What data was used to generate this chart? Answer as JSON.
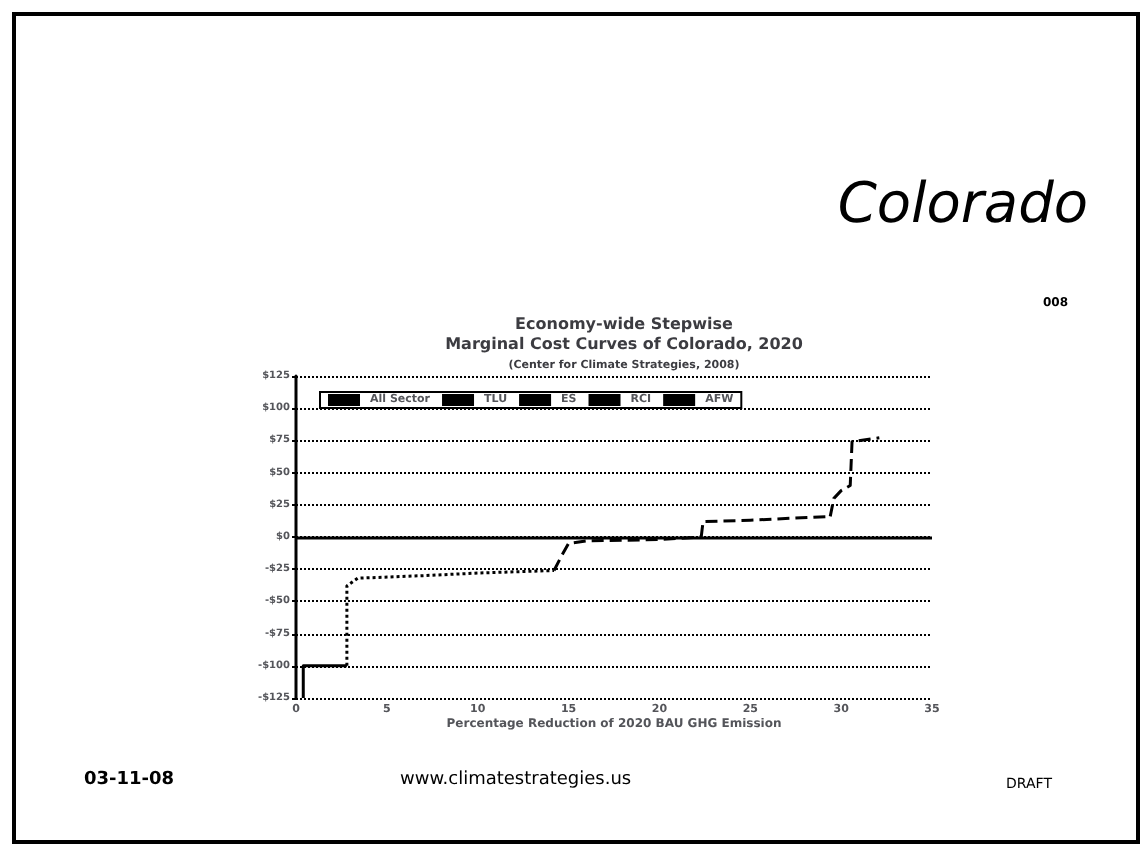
{
  "chart_data": {
    "type": "line",
    "title": "Economy-wide Stepwise\nMarginal Cost Curves of Colorado, 2020",
    "subtitle": "(Center for Climate Strategies, 2008)",
    "xlabel": "Percentage Reduction of 2020 BAU GHG Emission",
    "annotations": [
      "Colorado",
      "008",
      "03-11-08",
      "www.climatestrategies.us",
      "DRAFT"
    ],
    "series": [
      {
        "name": "All Sector",
        "color": "#000000",
        "line_style": "solid",
        "x": [
          0.4,
          0.4,
          2.8
        ],
        "values": [
          -125,
          -100,
          -100
        ]
      },
      {
        "name": "TLU",
        "color": "#000000",
        "line_style": "dashed",
        "x": [
          22.3,
          22.4,
          25,
          29.4
        ],
        "values": [
          0,
          12,
          13,
          16
        ]
      },
      {
        "name": "ES",
        "color": "#000000",
        "line_style": "dotted",
        "x": [
          2.8,
          2.8,
          3.4,
          7,
          10,
          14.2
        ],
        "values": [
          -100,
          -38,
          -32,
          -30,
          -28,
          -26
        ]
      },
      {
        "name": "RCI",
        "color": "#000000",
        "line_style": "dashed",
        "x": [
          14.2,
          14.6,
          15,
          16,
          20,
          22.3
        ],
        "values": [
          -26,
          -15,
          -5,
          -3,
          -2,
          0
        ]
      },
      {
        "name": "AFW",
        "color": "#000000",
        "line_style": "dashed",
        "x": [
          29.4,
          29.6,
          30,
          30.5,
          30.6,
          32.1
        ],
        "values": [
          16,
          30,
          36,
          40,
          74,
          77
        ]
      }
    ],
    "xlim": [
      0,
      35
    ],
    "xticks": [
      0,
      5,
      10,
      15,
      20,
      25,
      30,
      35
    ],
    "ylim": [
      -125,
      125
    ],
    "yticks": [
      {
        "value": -125,
        "label": "-$125"
      },
      {
        "value": -100,
        "label": "-$100"
      },
      {
        "value": -75,
        "label": "-$75"
      },
      {
        "value": -50,
        "label": "-$50"
      },
      {
        "value": -25,
        "label": "-$25"
      },
      {
        "value": 0,
        "label": "$0"
      },
      {
        "value": 25,
        "label": "$25"
      },
      {
        "value": 50,
        "label": "$50"
      },
      {
        "value": 75,
        "label": "$75"
      },
      {
        "value": 100,
        "label": "$100"
      },
      {
        "value": 125,
        "label": "$125"
      }
    ],
    "ref_lines": [
      {
        "axis": "y",
        "value": 0,
        "color": "#000000",
        "line_style": "solid"
      }
    ],
    "grid": "y",
    "legend": "top left",
    "marker": "none"
  }
}
